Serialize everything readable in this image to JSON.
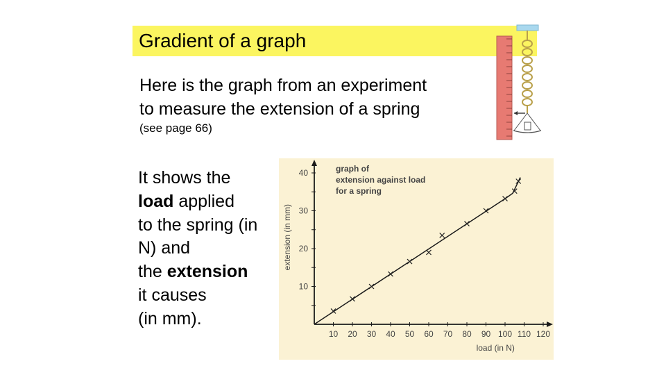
{
  "slide": {
    "title": "Gradient of a graph",
    "intro_line1": "Here is the graph from an experiment",
    "intro_line2": "to measure the extension of a spring",
    "note": "(see page 66)",
    "body": {
      "line1": "It shows the",
      "load_word": "load",
      "line2_rest": " applied",
      "line3": "to the spring (in",
      "line4": "N) and",
      "line5_pre": "the ",
      "extension_word": "extension",
      "line6": "it causes",
      "line7": "(in mm)."
    }
  },
  "illustration": {
    "name": "spring-apparatus",
    "colors": {
      "ruler": "#e77a72",
      "spring": "#b9a04a",
      "clamp": "#a9d8ee"
    }
  },
  "chart_data": {
    "type": "scatter",
    "title": "graph of extension against load for a spring",
    "title_lines": [
      "graph of",
      "extension against load",
      "for a spring"
    ],
    "xlabel": "load (in N)",
    "ylabel": "extension (in mm)",
    "xlim": [
      0,
      120
    ],
    "ylim": [
      0,
      40
    ],
    "x_ticks": [
      10,
      20,
      30,
      40,
      50,
      60,
      70,
      80,
      90,
      100,
      110,
      120
    ],
    "y_ticks": [
      10,
      20,
      30,
      40
    ],
    "points": [
      {
        "x": 10,
        "y": 3.5
      },
      {
        "x": 20,
        "y": 6.7
      },
      {
        "x": 30,
        "y": 10
      },
      {
        "x": 40,
        "y": 13.3
      },
      {
        "x": 50,
        "y": 16.6
      },
      {
        "x": 60,
        "y": 19
      },
      {
        "x": 67,
        "y": 23.5
      },
      {
        "x": 80,
        "y": 26.6
      },
      {
        "x": 90,
        "y": 30
      },
      {
        "x": 100,
        "y": 33.2
      },
      {
        "x": 105,
        "y": 35.2
      },
      {
        "x": 107,
        "y": 37.8
      }
    ],
    "fit_line": [
      [
        0,
        0
      ],
      [
        100,
        33.2
      ],
      [
        104,
        34.6
      ],
      [
        108,
        38.8
      ]
    ],
    "colors": {
      "background": "#fbf2d4",
      "marks": "#222222",
      "line": "#1a1a1a",
      "text": "#444444"
    },
    "grid": false,
    "legend": "none"
  }
}
